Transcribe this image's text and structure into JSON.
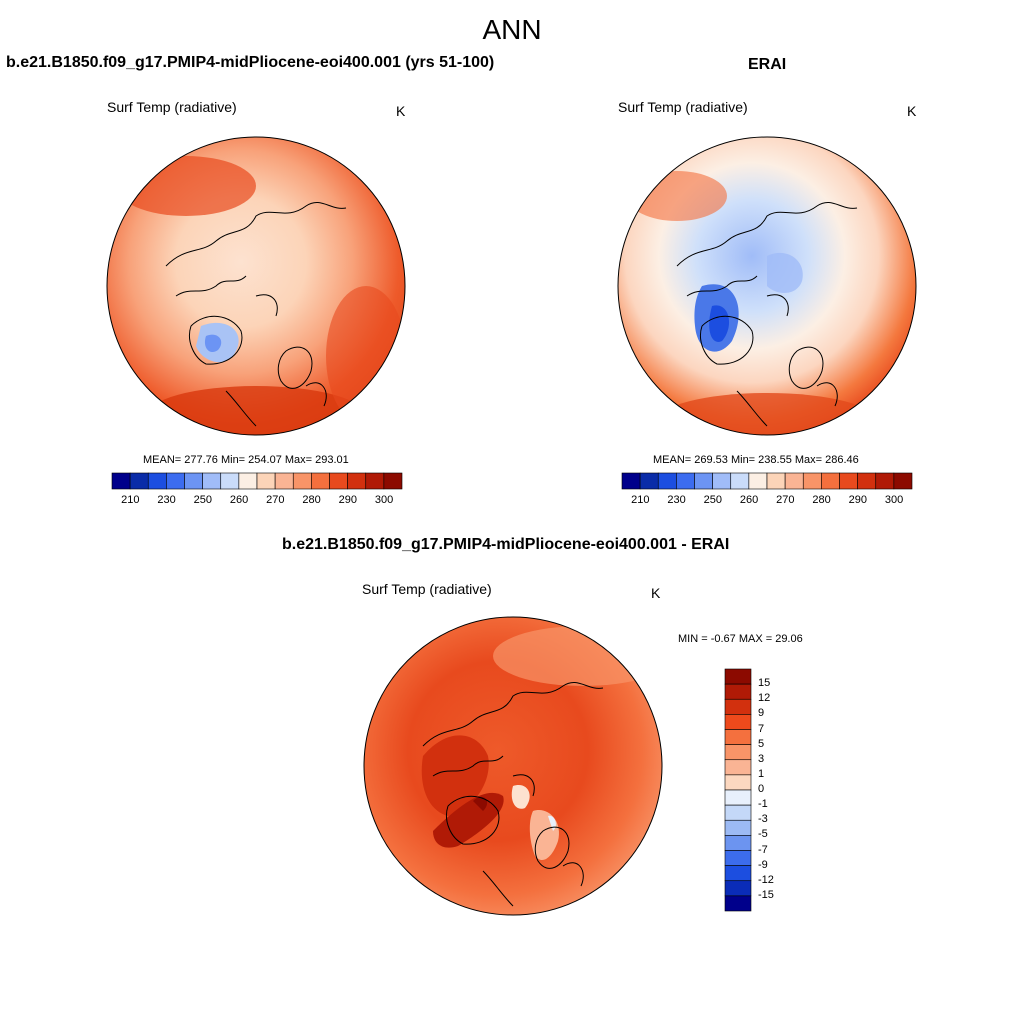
{
  "title": "ANN",
  "panels": [
    {
      "title": "b.e21.B1850.f09_g17.PMIP4-midPliocene-eoi400.001 (yrs 51-100)",
      "var_label": "Surf Temp (radiative)",
      "units": "K",
      "stats": "MEAN= 277.76  Min= 254.07  Max= 293.01"
    },
    {
      "title": "ERAI",
      "var_label": "Surf Temp (radiative)",
      "units": "K",
      "stats": "MEAN= 269.53  Min= 238.55  Max= 286.46"
    },
    {
      "title": "b.e21.B1850.f09_g17.PMIP4-midPliocene-eoi400.001 - ERAI",
      "var_label": "Surf Temp (radiative)",
      "units": "K",
      "stats": "MIN =  -0.67 MAX =  29.06"
    }
  ],
  "abs_colorbar": {
    "ticks": [
      "210",
      "230",
      "250",
      "260",
      "270",
      "280",
      "290",
      "300"
    ],
    "colors": [
      "#00008b",
      "#0a2ca8",
      "#1c4ee0",
      "#3c6cf0",
      "#6c94f4",
      "#a0bcf8",
      "#cadcfa",
      "#fcefe4",
      "#fcd4b8",
      "#fab494",
      "#f89468",
      "#f4703e",
      "#e84a1e",
      "#d2300e",
      "#b01a06",
      "#8c0a00"
    ]
  },
  "diff_colorbar": {
    "ticks": [
      "15",
      "12",
      "9",
      "7",
      "5",
      "3",
      "1",
      "0",
      "-1",
      "-3",
      "-5",
      "-7",
      "-9",
      "-12",
      "-15"
    ],
    "colors": [
      "#8c0a00",
      "#b01a06",
      "#d2300e",
      "#ee4a1c",
      "#f4703e",
      "#f89468",
      "#fab494",
      "#fcd8c0",
      "#e8f0fc",
      "#c4d8f8",
      "#9cbaf4",
      "#6c94f0",
      "#3c6cec",
      "#1c4ee0",
      "#0a2cb8",
      "#00008b"
    ]
  },
  "map_fields": {
    "model": {
      "outer": "#ee5a2a",
      "mid": "#f8a27a",
      "inner": "#fde2d0",
      "greenland": "#a9c3f5",
      "warm_south": "#d8380e"
    },
    "erai": {
      "outer": "#f4783e",
      "mid": "#fcd6c0",
      "inner": "#cfe0fa",
      "greenland": "#4a78e8",
      "warm_south": "#e24a1c"
    },
    "diff": {
      "outer": "#f4703e",
      "mid": "#e84a1e",
      "inner": "#ee5a2a",
      "hot": "#b01a06",
      "cool": "#fde2d0"
    }
  }
}
